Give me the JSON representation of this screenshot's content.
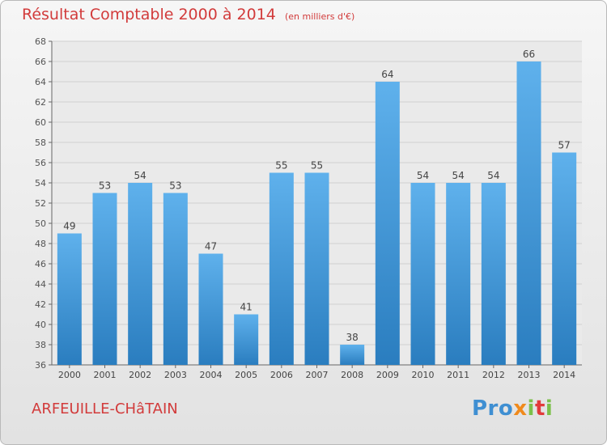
{
  "header": {
    "title": "Résultat Comptable 2000 à 2014",
    "unit": "(en milliers d'€)"
  },
  "footer": {
    "town": "ARFEUILLE-CHâTAIN",
    "logo": {
      "p1": "Pro",
      "p2": "x",
      "p3": "i",
      "p4": "t",
      "p5": "i"
    }
  },
  "colors": {
    "bar_top": "#5fb1ec",
    "bar_bottom": "#2a7dbf",
    "title": "#d23b3b"
  },
  "chart_data": {
    "type": "bar",
    "categories": [
      "2000",
      "2001",
      "2002",
      "2003",
      "2004",
      "2005",
      "2006",
      "2007",
      "2008",
      "2009",
      "2010",
      "2011",
      "2012",
      "2013",
      "2014"
    ],
    "values": [
      49,
      53,
      54,
      53,
      47,
      41,
      55,
      55,
      38,
      64,
      54,
      54,
      54,
      66,
      57
    ],
    "title": "Résultat Comptable 2000 à 2014",
    "xlabel": "",
    "ylabel": "",
    "ylim": [
      36,
      68
    ],
    "yticks": [
      36,
      38,
      40,
      42,
      44,
      46,
      48,
      50,
      52,
      54,
      56,
      58,
      60,
      62,
      64,
      66,
      68
    ],
    "grid": true,
    "data_labels": true
  }
}
